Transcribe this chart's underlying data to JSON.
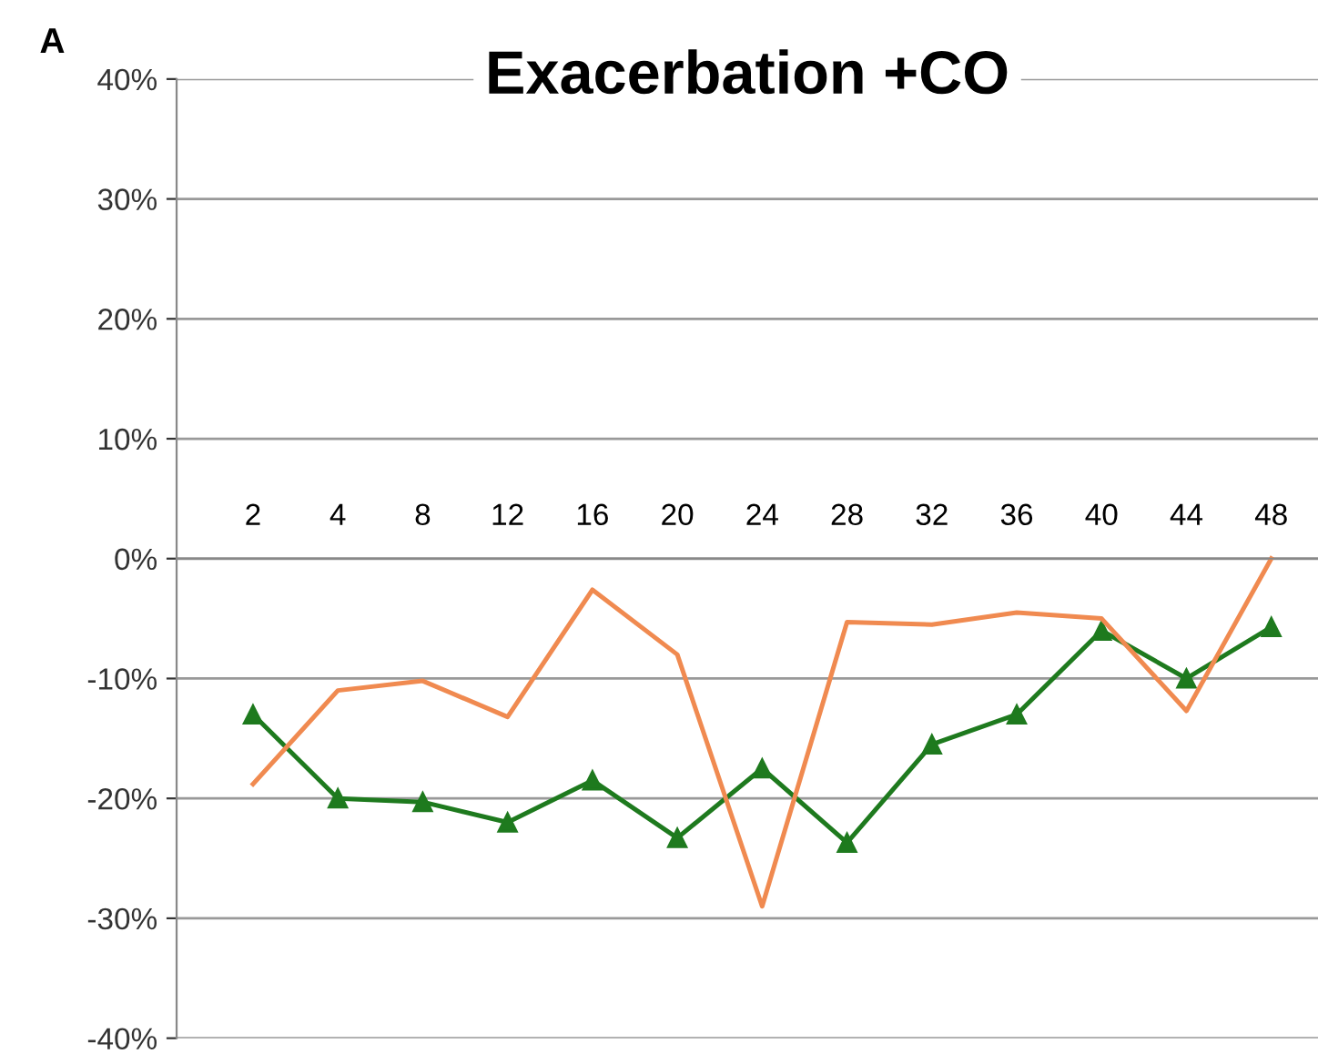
{
  "chart_data": {
    "type": "line",
    "title": "Exacerbation +CO",
    "annotations": [
      "A"
    ],
    "categories": [
      "2",
      "4",
      "8",
      "12",
      "16",
      "20",
      "24",
      "28",
      "32",
      "36",
      "40",
      "44",
      "48"
    ],
    "series": [
      {
        "color": "#1e7a1e",
        "marker": "triangle",
        "values": [
          -13,
          -20,
          -20.3,
          -22,
          -18.5,
          -23.3,
          -17.5,
          -23.7,
          -15.5,
          -13,
          -6,
          -10,
          -5.7
        ]
      },
      {
        "color": "#f08a50",
        "marker": "none",
        "values": [
          -18.8,
          -11,
          -10.2,
          -13.2,
          -2.6,
          -8,
          -29,
          -5.3,
          -5.5,
          -4.5,
          -5,
          -12.7,
          0
        ]
      }
    ],
    "ylim": [
      -40,
      40
    ],
    "yticks": [
      {
        "value": -40,
        "label": "-40%"
      },
      {
        "value": -30,
        "label": "-30%"
      },
      {
        "value": -20,
        "label": "-20%"
      },
      {
        "value": -10,
        "label": "-10%"
      },
      {
        "value": 0,
        "label": "0%"
      },
      {
        "value": 10,
        "label": "10%"
      },
      {
        "value": 20,
        "label": "20%"
      },
      {
        "value": 30,
        "label": "30%"
      },
      {
        "value": 40,
        "label": "40%"
      }
    ],
    "grid": "y",
    "legend": false
  }
}
